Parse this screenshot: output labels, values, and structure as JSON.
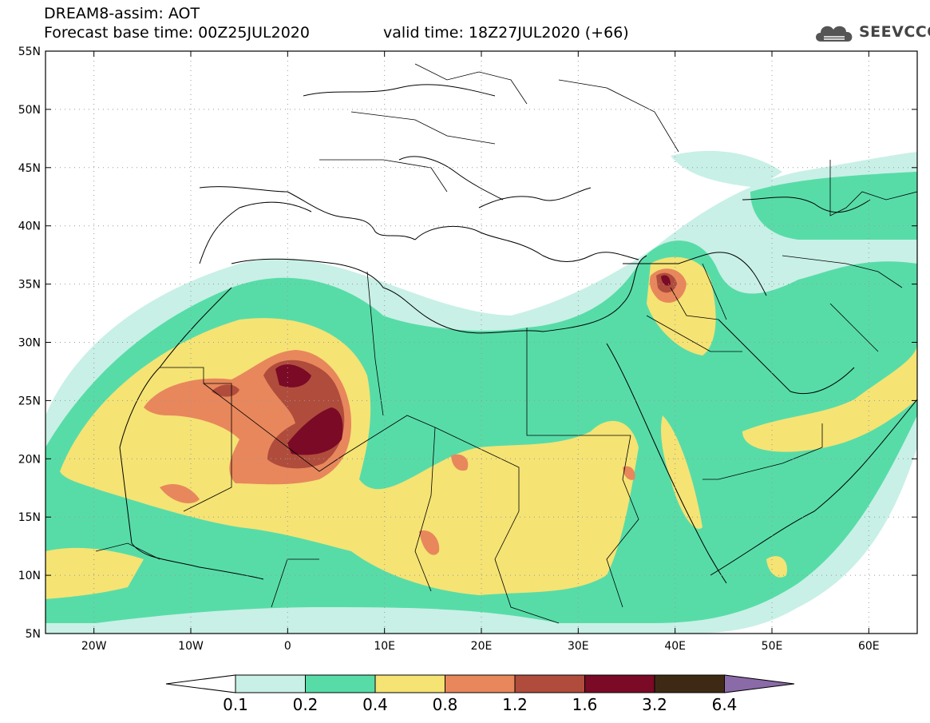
{
  "title": {
    "line1": "DREAM8-assim: AOT",
    "base": "Forecast base time: 00Z25JUL2020",
    "valid": "valid time: 18Z27JUL2020 (+66)"
  },
  "logo": {
    "text": "SEEVCCC"
  },
  "map": {
    "lon_range": [
      -25,
      65
    ],
    "lat_range": [
      5,
      55
    ],
    "lat_labels": [
      "5N",
      "10N",
      "15N",
      "20N",
      "25N",
      "30N",
      "35N",
      "40N",
      "45N",
      "50N",
      "55N"
    ],
    "lon_labels": [
      "20W",
      "10W",
      "0",
      "10E",
      "20E",
      "30E",
      "40E",
      "50E",
      "60E"
    ],
    "grid": "dotted"
  },
  "colorbar": {
    "levels": [
      "0.1",
      "0.2",
      "0.4",
      "0.8",
      "1.2",
      "1.6",
      "3.2",
      "6.4"
    ],
    "colors": [
      "#ffffff",
      "#c8f0e6",
      "#57dca8",
      "#f5e374",
      "#e8875c",
      "#b04c3c",
      "#7a0a26",
      "#3e2a14",
      "#8b6aa8"
    ]
  }
}
